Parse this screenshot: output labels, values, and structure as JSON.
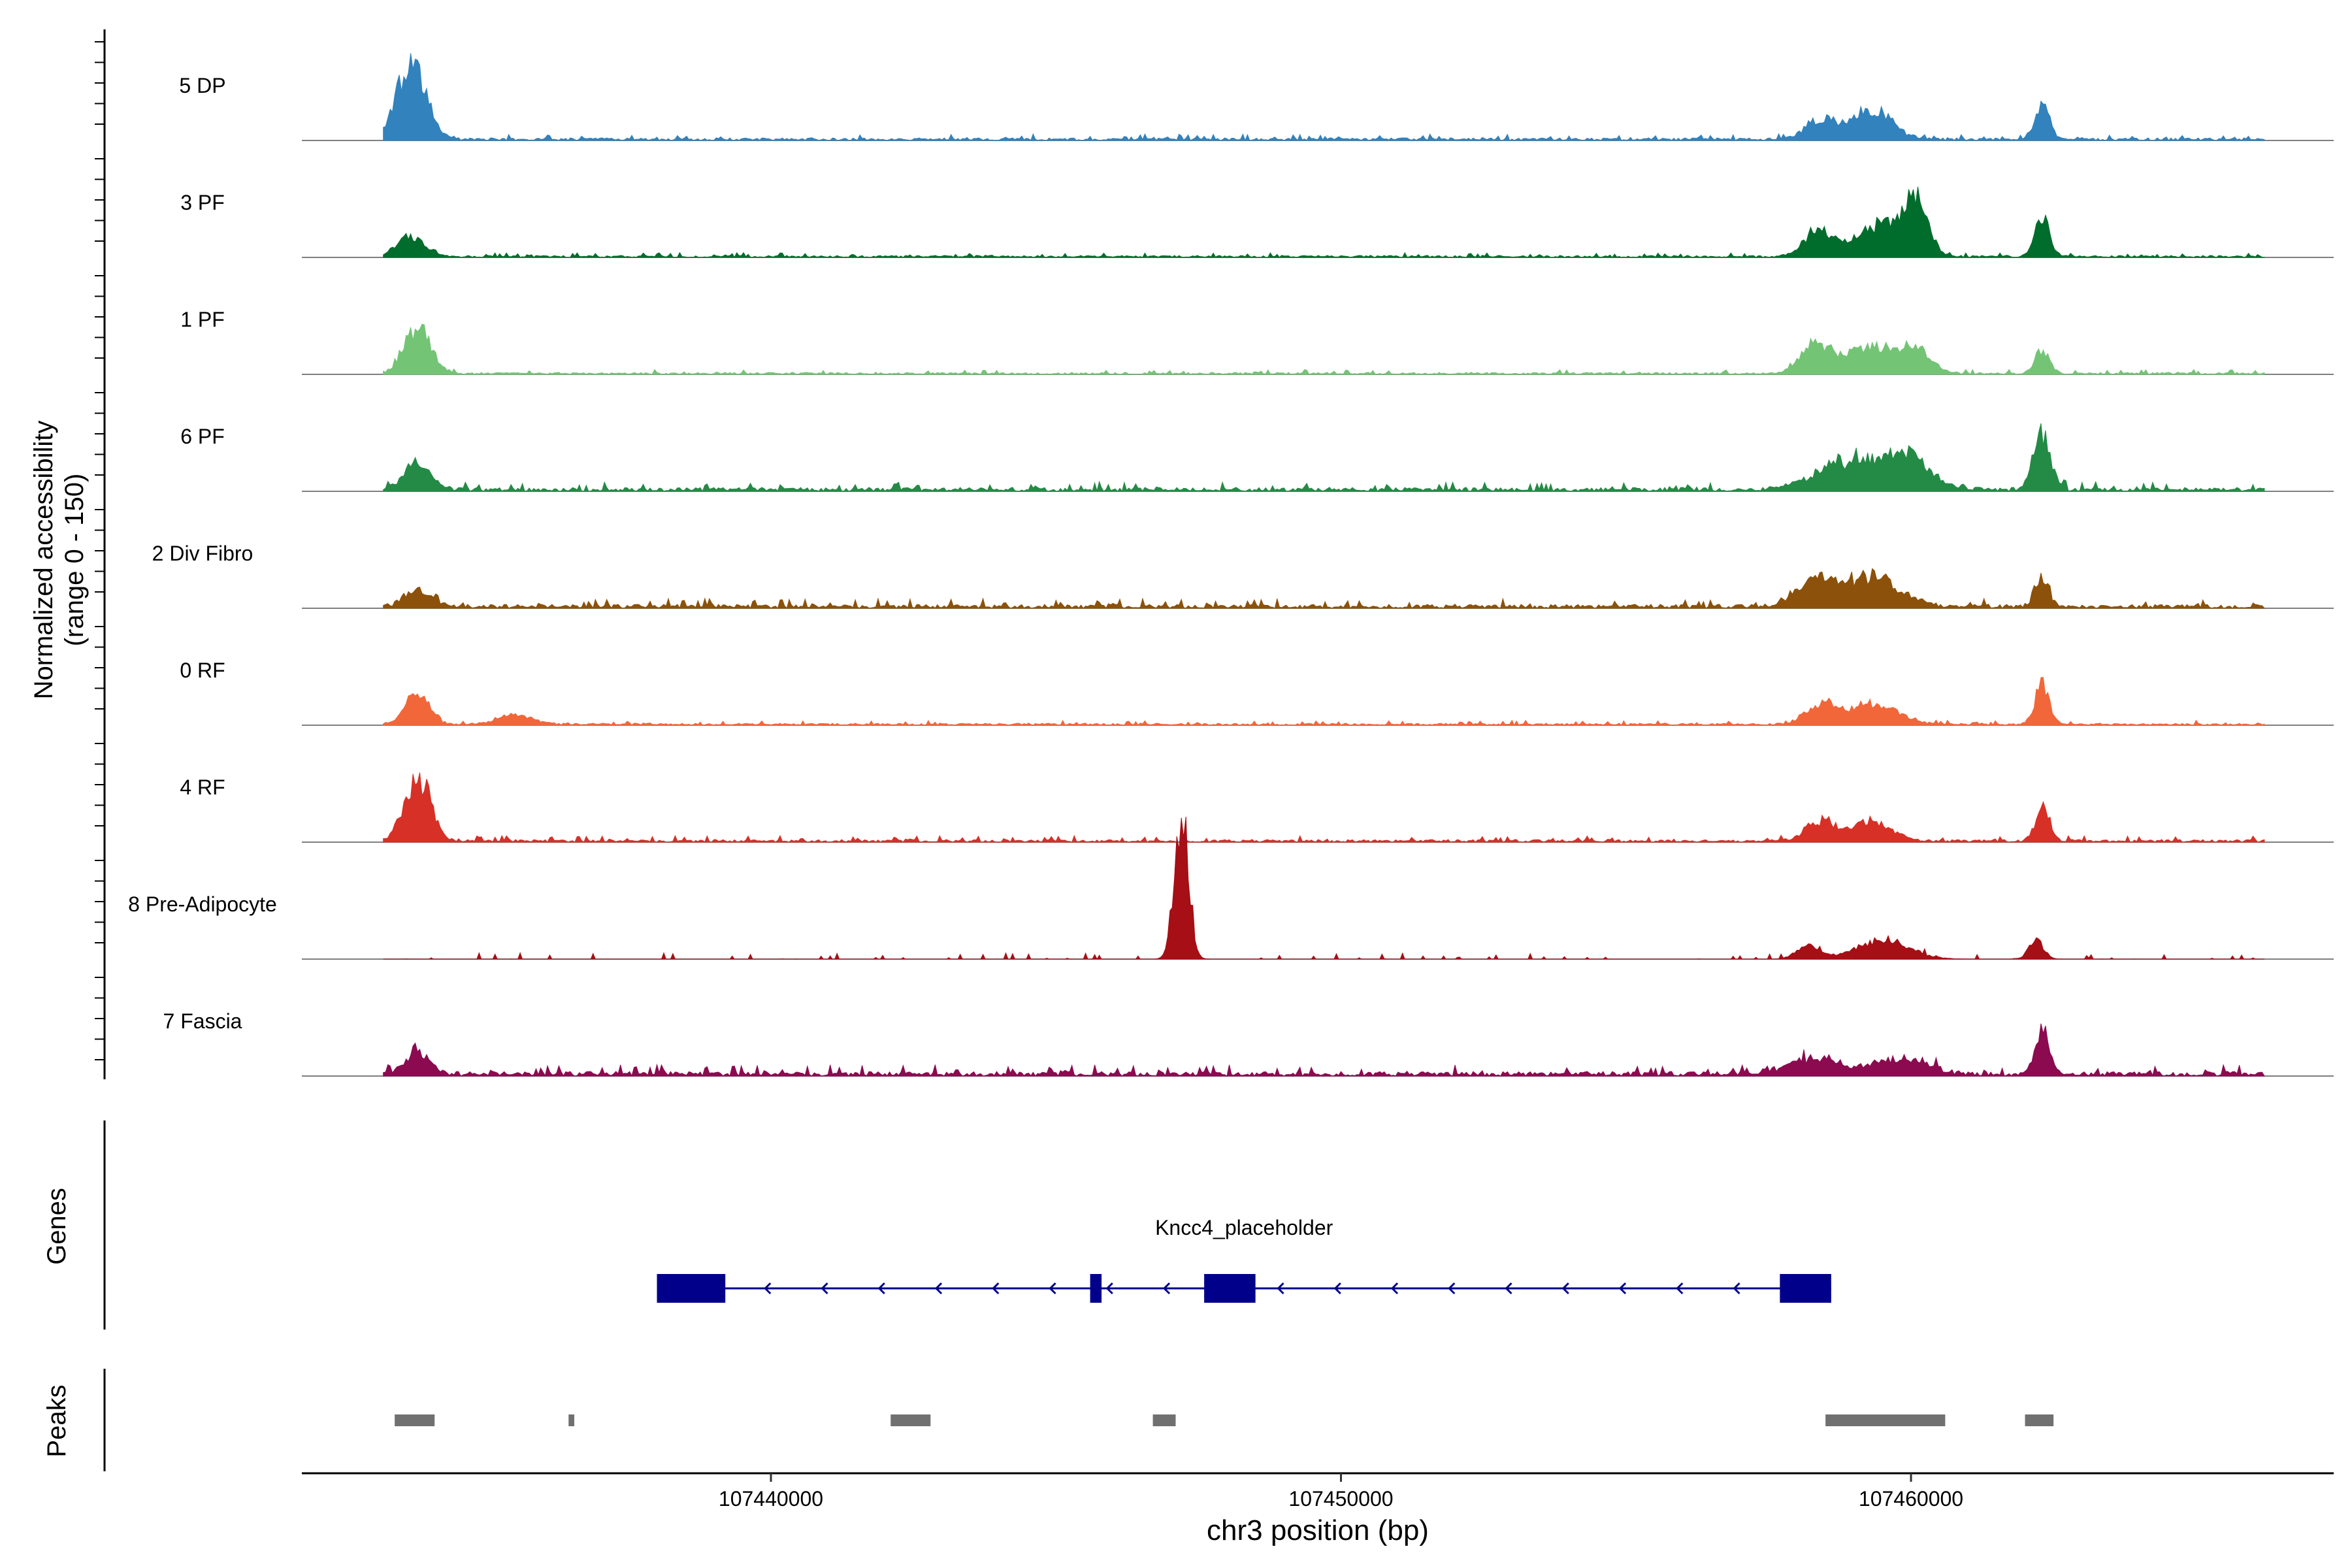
{
  "chart_data": {
    "type": "area",
    "track_type": "coverage",
    "y_axis_label_line1": "Normalized accessibility",
    "y_axis_label_line2": "(range 0 - 150)",
    "ylim": [
      0,
      150
    ],
    "xlim": [
      107432000,
      107468000
    ],
    "x_ticks": [
      107440000,
      107450000,
      107460000
    ],
    "x_tick_labels": [
      "107440000",
      "107450000",
      "107460000"
    ],
    "xlabel": "chr3 position (bp)",
    "grid": false,
    "series": [
      {
        "name": "5 DP",
        "color": "#3182BD",
        "peaks": [
          [
            107433700,
            120,
            500
          ],
          [
            107458400,
            30,
            500
          ],
          [
            107459300,
            45,
            700
          ],
          [
            107462300,
            50,
            250
          ]
        ],
        "noise": 4
      },
      {
        "name": "3 PF",
        "color": "#006D2C",
        "peaks": [
          [
            107433700,
            30,
            500
          ],
          [
            107458400,
            40,
            500
          ],
          [
            107459500,
            50,
            800
          ],
          [
            107460100,
            80,
            400
          ],
          [
            107462300,
            60,
            250
          ]
        ],
        "noise": 3
      },
      {
        "name": "1 PF",
        "color": "#74C476",
        "peaks": [
          [
            107433800,
            70,
            450
          ],
          [
            107458300,
            45,
            500
          ],
          [
            107459300,
            40,
            900
          ],
          [
            107460100,
            35,
            500
          ],
          [
            107462300,
            35,
            250
          ]
        ],
        "noise": 3
      },
      {
        "name": "6 PF",
        "color": "#238B45",
        "peaks": [
          [
            107433800,
            45,
            450
          ],
          [
            107459000,
            45,
            1200
          ],
          [
            107460000,
            45,
            700
          ],
          [
            107462300,
            90,
            300
          ]
        ],
        "noise": 6
      },
      {
        "name": "2 Div Fibro",
        "color": "#8C510A",
        "peaks": [
          [
            107433800,
            25,
            450
          ],
          [
            107458300,
            40,
            600
          ],
          [
            107459300,
            45,
            1000
          ],
          [
            107462300,
            45,
            250
          ]
        ],
        "noise": 6
      },
      {
        "name": "0 RF",
        "color": "#F16739",
        "peaks": [
          [
            107433800,
            50,
            400
          ],
          [
            107435500,
            15,
            600
          ],
          [
            107458400,
            30,
            500
          ],
          [
            107459300,
            30,
            900
          ],
          [
            107462300,
            60,
            250
          ]
        ],
        "noise": 3
      },
      {
        "name": "4 RF",
        "color": "#D73027",
        "peaks": [
          [
            107433800,
            100,
            450
          ],
          [
            107458400,
            30,
            500
          ],
          [
            107459300,
            30,
            700
          ],
          [
            107462300,
            50,
            250
          ]
        ],
        "noise": 4
      },
      {
        "name": "8 Pre-Adipocyte",
        "color": "#A50F15",
        "peaks": [
          [
            107447200,
            220,
            250
          ],
          [
            107458200,
            20,
            400
          ],
          [
            107459500,
            30,
            900
          ],
          [
            107462200,
            30,
            250
          ]
        ],
        "noise": 10,
        "sparse": true
      },
      {
        "name": "7 Fascia",
        "color": "#8B0A50",
        "peaks": [
          [
            107433800,
            35,
            400
          ],
          [
            107458300,
            25,
            900
          ],
          [
            107459800,
            25,
            900
          ],
          [
            107462300,
            70,
            250
          ]
        ],
        "noise": 7
      }
    ],
    "genes_track_label": "Genes",
    "gene": {
      "name": "Kncc4_placeholder",
      "color": "#00008B",
      "start": 107438000,
      "end": 107458600,
      "strand": "-",
      "exons": [
        [
          107438000,
          107439200
        ],
        [
          107445600,
          107445800
        ],
        [
          107447600,
          107448500
        ],
        [
          107457700,
          107458600
        ]
      ]
    },
    "peaks_track_label": "Peaks",
    "peak_color": "#707070",
    "peak_regions": [
      [
        107433400,
        107434100
      ],
      [
        107436450,
        107436550
      ],
      [
        107442100,
        107442800
      ],
      [
        107446700,
        107447100
      ],
      [
        107458500,
        107460600
      ],
      [
        107462000,
        107462500
      ]
    ]
  }
}
